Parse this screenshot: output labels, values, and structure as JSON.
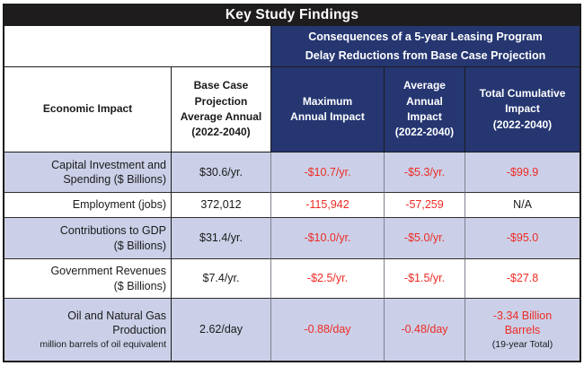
{
  "title": "Key Study Findings",
  "span_header": "Consequences of a 5-year Leasing Program\nDelay Reductions from Base Case Projection",
  "columns": {
    "economic_impact": "Economic Impact",
    "base_case": "Base Case\nProjection\nAverage Annual\n(2022-2040)",
    "max_impact": "Maximum\nAnnual Impact",
    "avg_impact": "Average\nAnnual\nImpact\n(2022-2040)",
    "total_impact": "Total Cumulative\nImpact\n(2022-2040)"
  },
  "rows": [
    {
      "label": "Capital Investment and\nSpending ($ Billions)",
      "base_case": "$30.6/yr.",
      "max_impact": "-$10.7/yr.",
      "avg_impact": "-$5.3/yr.",
      "total_impact": "-$99.9"
    },
    {
      "label": "Employment (jobs)",
      "base_case": "372,012",
      "max_impact": "-115,942",
      "avg_impact": "-57,259",
      "total_impact": "N/A"
    },
    {
      "label": "Contributions to GDP\n($ Billions)",
      "base_case": "$31.4/yr.",
      "max_impact": "-$10.0/yr.",
      "avg_impact": "-$5.0/yr.",
      "total_impact": "-$95.0"
    },
    {
      "label": "Government Revenues\n($ Billions)",
      "base_case": "$7.4/yr.",
      "max_impact": "-$2.5/yr.",
      "avg_impact": "-$1.5/yr.",
      "total_impact": "-$27.8"
    },
    {
      "label": "Oil and Natural Gas\nProduction",
      "label_note": "million barrels of oil equivalent",
      "base_case": "2.62/day",
      "max_impact": "-0.88/day",
      "avg_impact": "-0.48/day",
      "total_impact": "-3.34 Billion\nBarrels",
      "total_note": "(19-year Total)"
    }
  ],
  "colors": {
    "header_navy": "#253671",
    "row_shade": "#cbd0e8",
    "negative_red": "#ee2b24",
    "title_black": "#1f1c1d"
  }
}
